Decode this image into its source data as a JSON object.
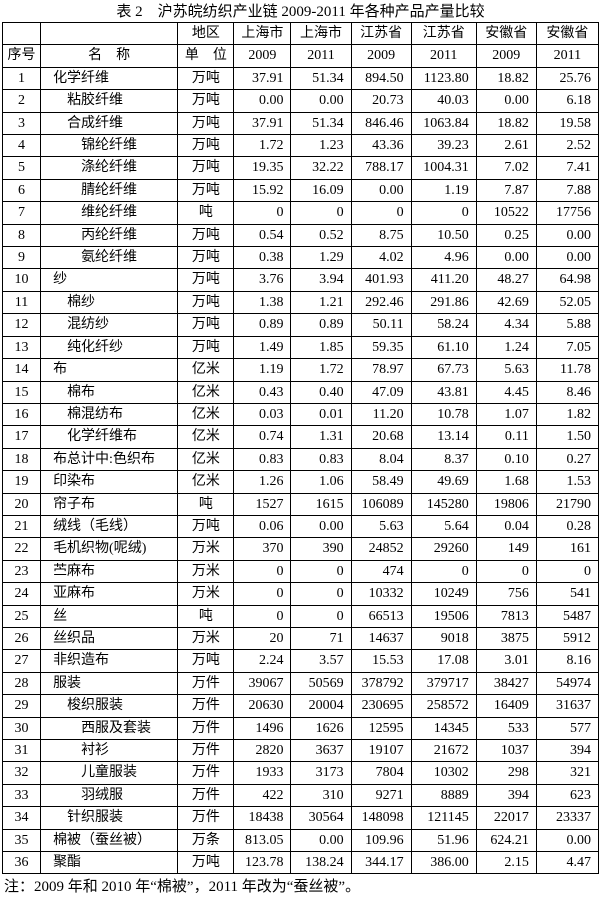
{
  "page": {
    "title": "表 2　沪苏皖纺织产业链 2009-2011 年各种产品产量比较",
    "note": "注：2009 年和 2010 年“棉被”，2011 年改为“蚕丝被”。"
  },
  "table": {
    "header": {
      "serial_label": "序号",
      "name_label": "名　称",
      "region_label": "地区",
      "unit_label": "单　位",
      "regions": [
        "上海市",
        "上海市",
        "江苏省",
        "江苏省",
        "安徽省",
        "安徽省"
      ],
      "years": [
        "2009",
        "2011",
        "2009",
        "2011",
        "2009",
        "2011"
      ]
    },
    "rows": [
      {
        "no": "1",
        "name": "化学纤维",
        "indent": 0,
        "unit": "万吨",
        "values": [
          "37.91",
          "51.34",
          "894.50",
          "1123.80",
          "18.82",
          "25.76"
        ]
      },
      {
        "no": "2",
        "name": "粘胶纤维",
        "indent": 1,
        "unit": "万吨",
        "values": [
          "0.00",
          "0.00",
          "20.73",
          "40.03",
          "0.00",
          "6.18"
        ]
      },
      {
        "no": "3",
        "name": "合成纤维",
        "indent": 1,
        "unit": "万吨",
        "values": [
          "37.91",
          "51.34",
          "846.46",
          "1063.84",
          "18.82",
          "19.58"
        ]
      },
      {
        "no": "4",
        "name": "锦纶纤维",
        "indent": 2,
        "unit": "万吨",
        "values": [
          "1.72",
          "1.23",
          "43.36",
          "39.23",
          "2.61",
          "2.52"
        ]
      },
      {
        "no": "5",
        "name": "涤纶纤维",
        "indent": 2,
        "unit": "万吨",
        "values": [
          "19.35",
          "32.22",
          "788.17",
          "1004.31",
          "7.02",
          "7.41"
        ]
      },
      {
        "no": "6",
        "name": "腈纶纤维",
        "indent": 2,
        "unit": "万吨",
        "values": [
          "15.92",
          "16.09",
          "0.00",
          "1.19",
          "7.87",
          "7.88"
        ]
      },
      {
        "no": "7",
        "name": "维纶纤维",
        "indent": 2,
        "unit": "吨",
        "values": [
          "0",
          "0",
          "0",
          "0",
          "10522",
          "17756"
        ]
      },
      {
        "no": "8",
        "name": "丙纶纤维",
        "indent": 2,
        "unit": "万吨",
        "values": [
          "0.54",
          "0.52",
          "8.75",
          "10.50",
          "0.25",
          "0.00"
        ]
      },
      {
        "no": "9",
        "name": "氨纶纤维",
        "indent": 2,
        "unit": "万吨",
        "values": [
          "0.38",
          "1.29",
          "4.02",
          "4.96",
          "0.00",
          "0.00"
        ]
      },
      {
        "no": "10",
        "name": "纱",
        "indent": 0,
        "unit": "万吨",
        "values": [
          "3.76",
          "3.94",
          "401.93",
          "411.20",
          "48.27",
          "64.98"
        ]
      },
      {
        "no": "11",
        "name": "棉纱",
        "indent": 1,
        "unit": "万吨",
        "values": [
          "1.38",
          "1.21",
          "292.46",
          "291.86",
          "42.69",
          "52.05"
        ]
      },
      {
        "no": "12",
        "name": "混纺纱",
        "indent": 1,
        "unit": "万吨",
        "values": [
          "0.89",
          "0.89",
          "50.11",
          "58.24",
          "4.34",
          "5.88"
        ]
      },
      {
        "no": "13",
        "name": "纯化纤纱",
        "indent": 1,
        "unit": "万吨",
        "values": [
          "1.49",
          "1.85",
          "59.35",
          "61.10",
          "1.24",
          "7.05"
        ]
      },
      {
        "no": "14",
        "name": "布",
        "indent": 0,
        "unit": "亿米",
        "values": [
          "1.19",
          "1.72",
          "78.97",
          "67.73",
          "5.63",
          "11.78"
        ]
      },
      {
        "no": "15",
        "name": "棉布",
        "indent": 1,
        "unit": "亿米",
        "values": [
          "0.43",
          "0.40",
          "47.09",
          "43.81",
          "4.45",
          "8.46"
        ]
      },
      {
        "no": "16",
        "name": "棉混纺布",
        "indent": 1,
        "unit": "亿米",
        "values": [
          "0.03",
          "0.01",
          "11.20",
          "10.78",
          "1.07",
          "1.82"
        ]
      },
      {
        "no": "17",
        "name": "化学纤维布",
        "indent": 1,
        "unit": "亿米",
        "values": [
          "0.74",
          "1.31",
          "20.68",
          "13.14",
          "0.11",
          "1.50"
        ]
      },
      {
        "no": "18",
        "name": "布总计中:色织布",
        "indent": 0,
        "unit": "亿米",
        "values": [
          "0.83",
          "0.83",
          "8.04",
          "8.37",
          "0.10",
          "0.27"
        ]
      },
      {
        "no": "19",
        "name": "印染布",
        "indent": 0,
        "unit": "亿米",
        "values": [
          "1.26",
          "1.06",
          "58.49",
          "49.69",
          "1.68",
          "1.53"
        ]
      },
      {
        "no": "20",
        "name": "帘子布",
        "indent": 0,
        "unit": "吨",
        "values": [
          "1527",
          "1615",
          "106089",
          "145280",
          "19806",
          "21790"
        ]
      },
      {
        "no": "21",
        "name": "绒线（毛线）",
        "indent": 0,
        "unit": "万吨",
        "values": [
          "0.06",
          "0.00",
          "5.63",
          "5.64",
          "0.04",
          "0.28"
        ]
      },
      {
        "no": "22",
        "name": "毛机织物(呢绒)",
        "indent": 0,
        "unit": "万米",
        "values": [
          "370",
          "390",
          "24852",
          "29260",
          "149",
          "161"
        ]
      },
      {
        "no": "23",
        "name": "苎麻布",
        "indent": 0,
        "unit": "万米",
        "values": [
          "0",
          "0",
          "474",
          "0",
          "0",
          "0"
        ]
      },
      {
        "no": "24",
        "name": "亚麻布",
        "indent": 0,
        "unit": "万米",
        "values": [
          "0",
          "0",
          "10332",
          "10249",
          "756",
          "541"
        ]
      },
      {
        "no": "25",
        "name": "丝",
        "indent": 0,
        "unit": "吨",
        "values": [
          "0",
          "0",
          "66513",
          "19506",
          "7813",
          "5487"
        ]
      },
      {
        "no": "26",
        "name": "丝织品",
        "indent": 0,
        "unit": "万米",
        "values": [
          "20",
          "71",
          "14637",
          "9018",
          "3875",
          "5912"
        ]
      },
      {
        "no": "27",
        "name": "非织造布",
        "indent": 0,
        "unit": "万吨",
        "values": [
          "2.24",
          "3.57",
          "15.53",
          "17.08",
          "3.01",
          "8.16"
        ]
      },
      {
        "no": "28",
        "name": "服装",
        "indent": 0,
        "unit": "万件",
        "values": [
          "39067",
          "50569",
          "378792",
          "379717",
          "38427",
          "54974"
        ]
      },
      {
        "no": "29",
        "name": "梭织服装",
        "indent": 1,
        "unit": "万件",
        "values": [
          "20630",
          "20004",
          "230695",
          "258572",
          "16409",
          "31637"
        ]
      },
      {
        "no": "30",
        "name": "西服及套装",
        "indent": 2,
        "unit": "万件",
        "values": [
          "1496",
          "1626",
          "12595",
          "14345",
          "533",
          "577"
        ]
      },
      {
        "no": "31",
        "name": "衬衫",
        "indent": 2,
        "unit": "万件",
        "values": [
          "2820",
          "3637",
          "19107",
          "21672",
          "1037",
          "394"
        ]
      },
      {
        "no": "32",
        "name": "儿童服装",
        "indent": 2,
        "unit": "万件",
        "values": [
          "1933",
          "3173",
          "7804",
          "10302",
          "298",
          "321"
        ]
      },
      {
        "no": "33",
        "name": "羽绒服",
        "indent": 2,
        "unit": "万件",
        "values": [
          "422",
          "310",
          "9271",
          "8889",
          "394",
          "623"
        ]
      },
      {
        "no": "34",
        "name": "针织服装",
        "indent": 1,
        "unit": "万件",
        "values": [
          "18438",
          "30564",
          "148098",
          "121145",
          "22017",
          "23337"
        ]
      },
      {
        "no": "35",
        "name": "棉被（蚕丝被）",
        "indent": 0,
        "unit": "万条",
        "values": [
          "813.05",
          "0.00",
          "109.96",
          "51.96",
          "624.21",
          "0.00"
        ]
      },
      {
        "no": "36",
        "name": "聚酯",
        "indent": 0,
        "unit": "万吨",
        "values": [
          "123.78",
          "138.24",
          "344.17",
          "386.00",
          "2.15",
          "4.47"
        ]
      }
    ]
  }
}
